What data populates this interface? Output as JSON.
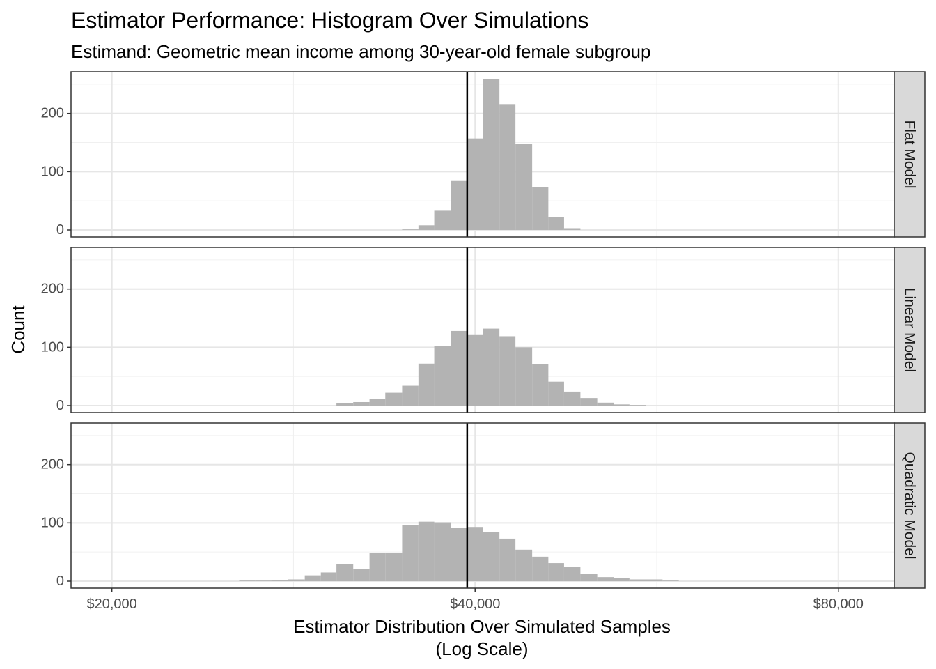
{
  "chart_data": {
    "type": "bar",
    "title": "Estimator Performance: Histogram Over Simulations",
    "subtitle": "Estimand: Geometric mean income among 30-year-old female subgroup",
    "xlabel_line1": "Estimator Distribution Over Simulated Samples",
    "xlabel_line2": "(Log Scale)",
    "ylabel": "Count",
    "x_scale": "log2",
    "xlim": [
      18500,
      89000
    ],
    "ylim": [
      0,
      265
    ],
    "x_ticks": [
      20000,
      40000,
      80000
    ],
    "x_tick_labels": [
      "$20,000",
      "$40,000",
      "$80,000"
    ],
    "y_ticks": [
      0,
      100,
      200
    ],
    "y_tick_labels": [
      "0",
      "100",
      "200"
    ],
    "true_value": 39400,
    "bar_color": "#b3b3b3",
    "bin_edges": [
      25500,
      26300,
      27100,
      28000,
      28900,
      29800,
      30700,
      31700,
      32700,
      33700,
      34800,
      35900,
      37000,
      38200,
      39400,
      40600,
      41900,
      43200,
      44600,
      46000,
      47400,
      48900,
      50500,
      52100,
      53700,
      55400,
      57200,
      59000,
      60800,
      62800,
      64700,
      66800
    ],
    "panels": [
      {
        "label": "Flat Model",
        "counts": [
          0,
          0,
          0,
          0,
          0,
          0,
          0,
          0,
          0,
          0,
          1,
          8,
          33,
          84,
          157,
          259,
          216,
          148,
          73,
          22,
          3,
          0,
          0,
          0,
          0,
          0,
          0,
          0,
          0,
          0,
          0
        ]
      },
      {
        "label": "Linear Model",
        "counts": [
          0,
          0,
          0,
          0,
          0,
          0,
          4,
          6,
          11,
          22,
          34,
          72,
          102,
          128,
          121,
          132,
          119,
          100,
          71,
          41,
          24,
          13,
          5,
          2,
          1,
          0,
          0,
          0,
          0,
          0,
          0
        ]
      },
      {
        "label": "Quadratic Model",
        "counts": [
          1,
          1,
          2,
          3,
          10,
          15,
          29,
          21,
          49,
          49,
          96,
          102,
          101,
          91,
          93,
          84,
          73,
          54,
          42,
          31,
          25,
          13,
          7,
          5,
          3,
          3,
          1,
          0,
          0,
          0,
          0
        ]
      }
    ]
  }
}
